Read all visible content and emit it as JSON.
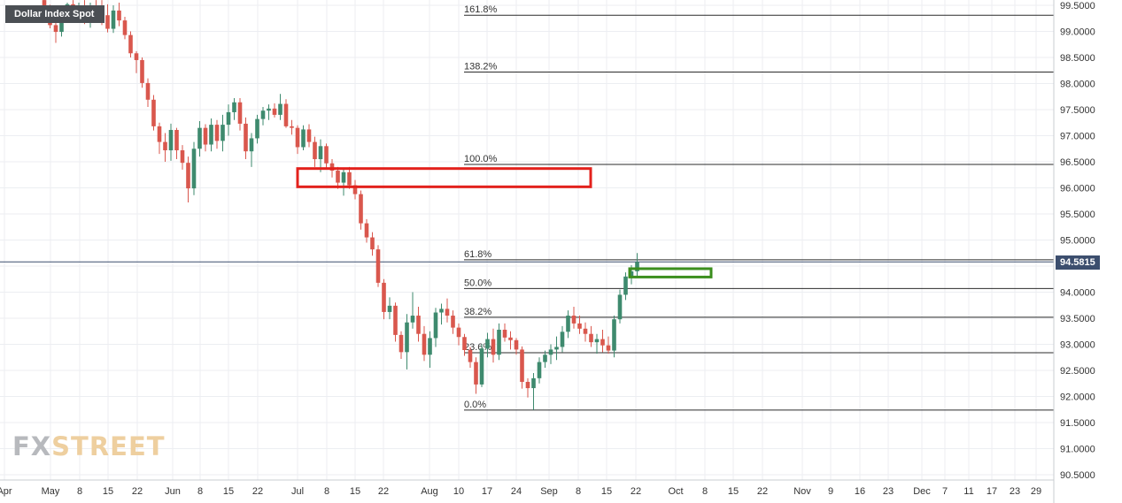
{
  "title": "Dollar Index Spot",
  "watermark": {
    "part1": "FX",
    "part2": "STREET"
  },
  "current_price": "94.5815",
  "colors": {
    "up": "#26a69a",
    "up_body": "#3e8a6e",
    "down": "#e05a4f",
    "down_body": "#d9574d",
    "grid": "#eceef2",
    "axis_text": "#333333",
    "price_line": "#3c4e6e",
    "zone_resistance": "#e3211c",
    "zone_support": "#3b8e1d"
  },
  "chart_data": {
    "type": "candlestick",
    "title": "Dollar Index Spot",
    "y_axis": {
      "position": "right",
      "ticks": [
        "99.5000",
        "99.0000",
        "98.5000",
        "98.0000",
        "97.5000",
        "97.0000",
        "96.5000",
        "96.0000",
        "95.5000",
        "95.0000",
        "94.5000",
        "94.0000",
        "93.5000",
        "93.0000",
        "92.5000",
        "92.0000",
        "91.5000",
        "91.0000",
        "90.5000"
      ],
      "range": [
        90.45,
        99.55
      ]
    },
    "x_axis": {
      "ticks": [
        "Apr",
        "May",
        "8",
        "15",
        "22",
        "Jun",
        "8",
        "15",
        "22",
        "Jul",
        "8",
        "15",
        "22",
        "Aug",
        "10",
        "17",
        "24",
        "Sep",
        "8",
        "15",
        "22",
        "Oct",
        "8",
        "15",
        "22",
        "Nov",
        "9",
        "16",
        "23",
        "Dec",
        "7",
        "11",
        "17",
        "23",
        "29"
      ]
    },
    "fibonacci": [
      {
        "label": "161.8%",
        "value": 99.31
      },
      {
        "label": "138.2%",
        "value": 98.22
      },
      {
        "label": "100.0%",
        "value": 96.45
      },
      {
        "label": "61.8%",
        "value": 94.62
      },
      {
        "label": "50.0%",
        "value": 94.07
      },
      {
        "label": "38.2%",
        "value": 93.52
      },
      {
        "label": "23.6%",
        "value": 92.84
      },
      {
        "label": "0.0%",
        "value": 91.74
      }
    ],
    "current_price": 94.5815,
    "zones": [
      {
        "name": "resistance-zone",
        "value_top": 96.37,
        "value_bottom": 96.02
      },
      {
        "name": "support-zone",
        "value_top": 94.45,
        "value_bottom": 94.29
      }
    ],
    "candles": [
      {
        "o": 99.6,
        "h": 99.65,
        "l": 99.34,
        "c": 99.43
      },
      {
        "o": 99.43,
        "h": 99.51,
        "l": 99.06,
        "c": 99.12
      },
      {
        "o": 99.12,
        "h": 99.29,
        "l": 98.78,
        "c": 98.99
      },
      {
        "o": 98.99,
        "h": 99.49,
        "l": 98.9,
        "c": 99.37
      },
      {
        "o": 99.37,
        "h": 99.55,
        "l": 99.22,
        "c": 99.52
      },
      {
        "o": 99.52,
        "h": 99.6,
        "l": 99.3,
        "c": 99.34
      },
      {
        "o": 99.34,
        "h": 99.55,
        "l": 99.25,
        "c": 99.45
      },
      {
        "o": 99.5,
        "h": 99.6,
        "l": 99.14,
        "c": 99.22
      },
      {
        "o": 99.22,
        "h": 99.55,
        "l": 99.07,
        "c": 99.45
      },
      {
        "o": 99.5,
        "h": 99.6,
        "l": 99.28,
        "c": 99.45
      },
      {
        "o": 99.45,
        "h": 99.6,
        "l": 99.12,
        "c": 99.31
      },
      {
        "o": 99.31,
        "h": 99.52,
        "l": 98.98,
        "c": 99.05
      },
      {
        "o": 99.05,
        "h": 99.5,
        "l": 98.97,
        "c": 99.4
      },
      {
        "o": 99.4,
        "h": 99.55,
        "l": 99.1,
        "c": 99.21
      },
      {
        "o": 99.21,
        "h": 99.28,
        "l": 98.85,
        "c": 98.93
      },
      {
        "o": 98.93,
        "h": 99.0,
        "l": 98.5,
        "c": 98.58
      },
      {
        "o": 98.58,
        "h": 98.62,
        "l": 98.2,
        "c": 98.45
      },
      {
        "o": 98.45,
        "h": 98.5,
        "l": 97.92,
        "c": 98.01
      },
      {
        "o": 98.01,
        "h": 98.1,
        "l": 97.55,
        "c": 97.69
      },
      {
        "o": 97.69,
        "h": 97.78,
        "l": 97.1,
        "c": 97.18
      },
      {
        "o": 97.18,
        "h": 97.25,
        "l": 96.65,
        "c": 96.88
      },
      {
        "o": 96.88,
        "h": 97.05,
        "l": 96.5,
        "c": 96.72
      },
      {
        "o": 96.72,
        "h": 97.23,
        "l": 96.52,
        "c": 97.11
      },
      {
        "o": 97.11,
        "h": 97.15,
        "l": 96.55,
        "c": 96.72
      },
      {
        "o": 96.72,
        "h": 96.82,
        "l": 96.35,
        "c": 96.48
      },
      {
        "o": 96.48,
        "h": 96.6,
        "l": 95.72,
        "c": 95.99
      },
      {
        "o": 95.99,
        "h": 96.88,
        "l": 95.86,
        "c": 96.75
      },
      {
        "o": 96.75,
        "h": 97.28,
        "l": 96.6,
        "c": 97.15
      },
      {
        "o": 97.15,
        "h": 97.22,
        "l": 96.7,
        "c": 96.83
      },
      {
        "o": 96.83,
        "h": 97.33,
        "l": 96.7,
        "c": 97.21
      },
      {
        "o": 97.21,
        "h": 97.3,
        "l": 96.75,
        "c": 96.9
      },
      {
        "o": 96.9,
        "h": 97.4,
        "l": 96.7,
        "c": 97.21
      },
      {
        "o": 97.21,
        "h": 97.6,
        "l": 97.0,
        "c": 97.45
      },
      {
        "o": 97.45,
        "h": 97.72,
        "l": 97.3,
        "c": 97.64
      },
      {
        "o": 97.64,
        "h": 97.72,
        "l": 97.1,
        "c": 97.23
      },
      {
        "o": 97.23,
        "h": 97.35,
        "l": 96.55,
        "c": 96.7
      },
      {
        "o": 96.7,
        "h": 97.05,
        "l": 96.4,
        "c": 96.95
      },
      {
        "o": 96.95,
        "h": 97.4,
        "l": 96.85,
        "c": 97.32
      },
      {
        "o": 97.32,
        "h": 97.55,
        "l": 97.2,
        "c": 97.48
      },
      {
        "o": 97.48,
        "h": 97.6,
        "l": 97.3,
        "c": 97.52
      },
      {
        "o": 97.52,
        "h": 97.62,
        "l": 97.35,
        "c": 97.4
      },
      {
        "o": 97.4,
        "h": 97.8,
        "l": 97.3,
        "c": 97.61
      },
      {
        "o": 97.61,
        "h": 97.7,
        "l": 97.15,
        "c": 97.18
      },
      {
        "o": 97.18,
        "h": 97.3,
        "l": 97.02,
        "c": 97.15
      },
      {
        "o": 97.15,
        "h": 97.2,
        "l": 96.65,
        "c": 96.78
      },
      {
        "o": 96.78,
        "h": 97.2,
        "l": 96.72,
        "c": 97.12
      },
      {
        "o": 97.12,
        "h": 97.22,
        "l": 96.78,
        "c": 96.88
      },
      {
        "o": 96.88,
        "h": 96.98,
        "l": 96.4,
        "c": 96.55
      },
      {
        "o": 96.55,
        "h": 96.93,
        "l": 96.3,
        "c": 96.8
      },
      {
        "o": 96.8,
        "h": 96.85,
        "l": 96.38,
        "c": 96.47
      },
      {
        "o": 96.47,
        "h": 96.55,
        "l": 96.2,
        "c": 96.33
      },
      {
        "o": 96.33,
        "h": 96.4,
        "l": 95.98,
        "c": 96.1
      },
      {
        "o": 96.1,
        "h": 96.35,
        "l": 95.85,
        "c": 96.3
      },
      {
        "o": 96.3,
        "h": 96.4,
        "l": 95.98,
        "c": 96.05
      },
      {
        "o": 96.05,
        "h": 96.15,
        "l": 95.78,
        "c": 95.88
      },
      {
        "o": 95.88,
        "h": 95.95,
        "l": 95.2,
        "c": 95.32
      },
      {
        "o": 95.32,
        "h": 95.4,
        "l": 94.95,
        "c": 95.05
      },
      {
        "o": 95.05,
        "h": 95.15,
        "l": 94.7,
        "c": 94.82
      },
      {
        "o": 94.82,
        "h": 94.9,
        "l": 94.1,
        "c": 94.18
      },
      {
        "o": 94.18,
        "h": 94.25,
        "l": 93.48,
        "c": 93.62
      },
      {
        "o": 93.62,
        "h": 93.9,
        "l": 93.48,
        "c": 93.74
      },
      {
        "o": 93.74,
        "h": 93.8,
        "l": 93.05,
        "c": 93.18
      },
      {
        "o": 93.18,
        "h": 93.25,
        "l": 92.72,
        "c": 92.85
      },
      {
        "o": 92.85,
        "h": 93.58,
        "l": 92.52,
        "c": 93.42
      },
      {
        "o": 93.42,
        "h": 94.0,
        "l": 93.3,
        "c": 93.55
      },
      {
        "o": 93.55,
        "h": 93.72,
        "l": 93.05,
        "c": 93.2
      },
      {
        "o": 93.2,
        "h": 93.35,
        "l": 92.68,
        "c": 92.8
      },
      {
        "o": 92.8,
        "h": 93.25,
        "l": 92.55,
        "c": 93.12
      },
      {
        "o": 93.12,
        "h": 93.7,
        "l": 92.95,
        "c": 93.61
      },
      {
        "o": 93.61,
        "h": 93.78,
        "l": 93.38,
        "c": 93.68
      },
      {
        "o": 93.68,
        "h": 93.88,
        "l": 93.42,
        "c": 93.55
      },
      {
        "o": 93.55,
        "h": 93.65,
        "l": 93.2,
        "c": 93.32
      },
      {
        "o": 93.32,
        "h": 93.4,
        "l": 92.98,
        "c": 93.14
      },
      {
        "o": 93.14,
        "h": 93.2,
        "l": 92.78,
        "c": 92.89
      },
      {
        "o": 92.89,
        "h": 92.95,
        "l": 92.55,
        "c": 92.66
      },
      {
        "o": 92.66,
        "h": 92.75,
        "l": 92.05,
        "c": 92.23
      },
      {
        "o": 92.23,
        "h": 93.0,
        "l": 92.18,
        "c": 92.92
      },
      {
        "o": 92.92,
        "h": 93.22,
        "l": 92.75,
        "c": 93.1
      },
      {
        "o": 93.1,
        "h": 93.3,
        "l": 92.65,
        "c": 92.8
      },
      {
        "o": 92.8,
        "h": 93.4,
        "l": 92.7,
        "c": 93.28
      },
      {
        "o": 93.28,
        "h": 93.4,
        "l": 93.05,
        "c": 93.13
      },
      {
        "o": 93.13,
        "h": 93.25,
        "l": 92.9,
        "c": 93.08
      },
      {
        "o": 93.08,
        "h": 93.12,
        "l": 92.8,
        "c": 92.9
      },
      {
        "o": 92.9,
        "h": 92.96,
        "l": 92.15,
        "c": 92.28
      },
      {
        "o": 92.28,
        "h": 92.35,
        "l": 91.98,
        "c": 92.16
      },
      {
        "o": 92.16,
        "h": 92.45,
        "l": 91.74,
        "c": 92.35
      },
      {
        "o": 92.35,
        "h": 92.75,
        "l": 92.25,
        "c": 92.66
      },
      {
        "o": 92.66,
        "h": 92.88,
        "l": 92.55,
        "c": 92.8
      },
      {
        "o": 92.8,
        "h": 93.0,
        "l": 92.62,
        "c": 92.9
      },
      {
        "o": 92.9,
        "h": 93.15,
        "l": 92.7,
        "c": 92.95
      },
      {
        "o": 92.95,
        "h": 93.35,
        "l": 92.85,
        "c": 93.24
      },
      {
        "o": 93.24,
        "h": 93.65,
        "l": 93.12,
        "c": 93.55
      },
      {
        "o": 93.55,
        "h": 93.72,
        "l": 93.3,
        "c": 93.4
      },
      {
        "o": 93.4,
        "h": 93.55,
        "l": 93.2,
        "c": 93.3
      },
      {
        "o": 93.3,
        "h": 93.42,
        "l": 93.05,
        "c": 93.2
      },
      {
        "o": 93.2,
        "h": 93.35,
        "l": 92.95,
        "c": 93.04
      },
      {
        "o": 93.04,
        "h": 93.2,
        "l": 92.82,
        "c": 93.1
      },
      {
        "o": 93.1,
        "h": 93.28,
        "l": 92.85,
        "c": 92.98
      },
      {
        "o": 92.98,
        "h": 93.15,
        "l": 92.82,
        "c": 92.88
      },
      {
        "o": 92.88,
        "h": 93.55,
        "l": 92.75,
        "c": 93.48
      },
      {
        "o": 93.48,
        "h": 94.05,
        "l": 93.4,
        "c": 93.95
      },
      {
        "o": 93.95,
        "h": 94.38,
        "l": 93.85,
        "c": 94.3
      },
      {
        "o": 94.3,
        "h": 94.52,
        "l": 94.15,
        "c": 94.4
      },
      {
        "o": 94.4,
        "h": 94.75,
        "l": 94.3,
        "c": 94.58
      }
    ]
  }
}
